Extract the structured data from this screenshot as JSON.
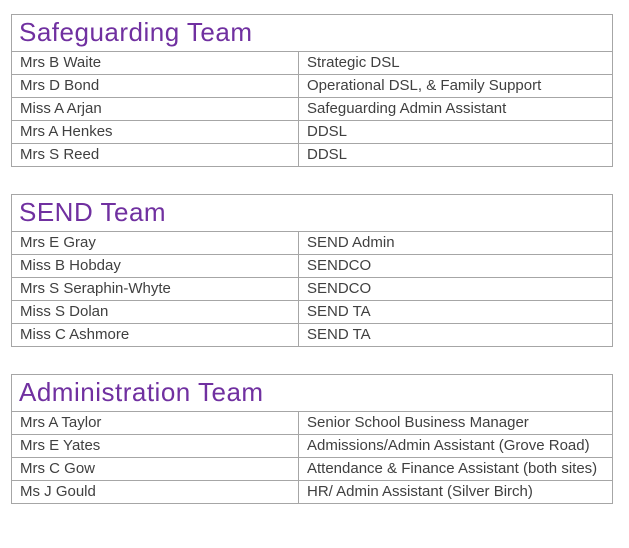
{
  "page": {
    "background": "#ffffff",
    "accent_color": "#7030A0",
    "border_color": "#a6a6a6",
    "text_color": "#404040"
  },
  "tables": [
    {
      "title": "Safeguarding Team",
      "rows": [
        {
          "name": "Mrs B Waite",
          "role": "Strategic DSL"
        },
        {
          "name": "Mrs D Bond",
          "role": "Operational DSL, & Family Support"
        },
        {
          "name": "Miss A Arjan",
          "role": "Safeguarding Admin Assistant"
        },
        {
          "name": "Mrs A Henkes",
          "role": "DDSL"
        },
        {
          "name": "Mrs S Reed",
          "role": "DDSL"
        }
      ]
    },
    {
      "title": "SEND Team",
      "rows": [
        {
          "name": "Mrs E Gray",
          "role": "SEND Admin"
        },
        {
          "name": "Miss B Hobday",
          "role": "SENDCO"
        },
        {
          "name": "Mrs S Seraphin-Whyte",
          "role": "SENDCO"
        },
        {
          "name": "Miss S Dolan",
          "role": "SEND TA"
        },
        {
          "name": "Miss C Ashmore",
          "role": "SEND TA"
        }
      ]
    },
    {
      "title": "Administration Team",
      "rows": [
        {
          "name": "Mrs A Taylor",
          "role": "Senior School Business Manager"
        },
        {
          "name": "Mrs E Yates",
          "role": "Admissions/Admin Assistant (Grove Road)"
        },
        {
          "name": "Mrs C Gow",
          "role": "Attendance & Finance Assistant (both sites)"
        },
        {
          "name": "Ms J Gould",
          "role": "HR/ Admin Assistant (Silver Birch)"
        }
      ]
    }
  ]
}
